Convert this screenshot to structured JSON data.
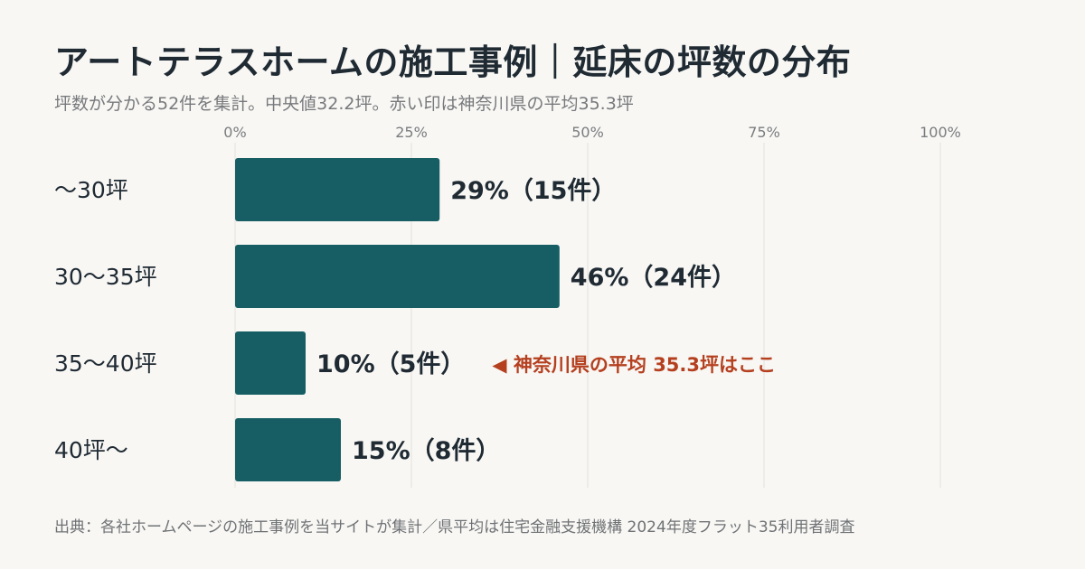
{
  "header": {
    "title": "アートテラスホームの施工事例｜延床の坪数の分布",
    "subtitle": "坪数が分かる52件を集計。中央値32.2坪。赤い印は神奈川県の平均35.3坪"
  },
  "chart_data": {
    "type": "bar",
    "orientation": "horizontal",
    "categories": [
      "〜30坪",
      "30〜35坪",
      "35〜40坪",
      "40坪〜"
    ],
    "values": [
      29,
      46,
      10,
      15
    ],
    "counts": [
      15,
      24,
      5,
      8
    ],
    "value_labels": [
      "29%（15件）",
      "46%（24件）",
      "10%（5件）",
      "15%（8件）"
    ],
    "xlim": [
      0,
      100
    ],
    "x_ticks": [
      0,
      25,
      50,
      75,
      100
    ],
    "x_tick_labels": [
      "0%",
      "25%",
      "50%",
      "75%",
      "100%"
    ],
    "grid": true,
    "annotation": {
      "category_index": 2,
      "text": "◀ 神奈川県の平均 35.3坪はここ",
      "color": "#b5401f"
    },
    "colors": {
      "bar": "#165e63",
      "grid": "#e3e1dc",
      "tick_text": "#7a7c7f",
      "label_text": "#1f2a33"
    }
  },
  "footer": {
    "source": "出典：各社ホームページの施工事例を当サイトが集計／県平均は住宅金融支援機構 2024年度フラット35利用者調査"
  }
}
